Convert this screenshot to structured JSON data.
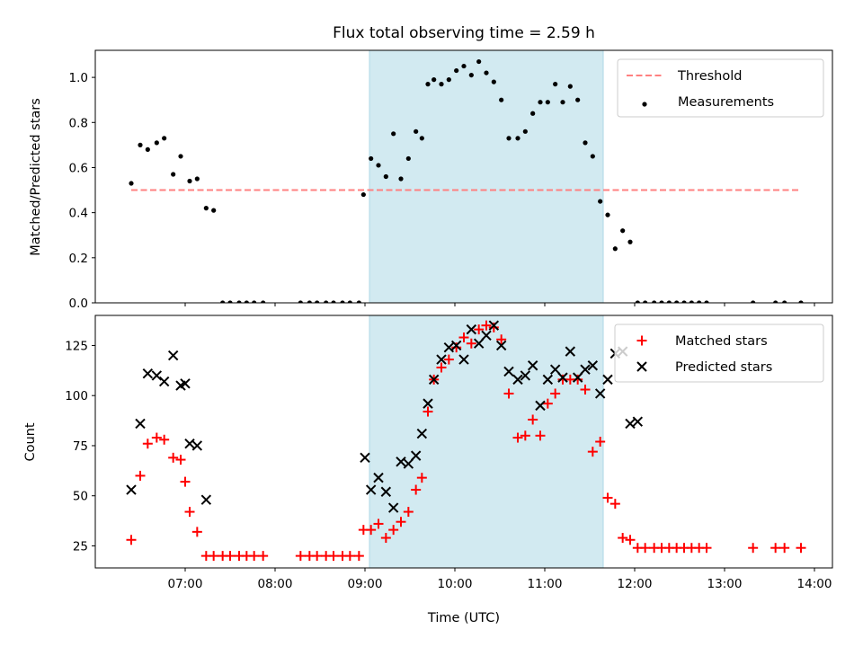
{
  "chart_data": [
    {
      "type": "scatter",
      "title": "Flux total observing time = 2.59 h",
      "xlabel": "",
      "ylabel": "Matched/Predicted stars",
      "xlim": [
        "06:00",
        "14:12"
      ],
      "ylim": [
        0,
        1.12
      ],
      "yticks": [
        0.0,
        0.2,
        0.4,
        0.6,
        0.8,
        1.0
      ],
      "ytick_labels": [
        "0.0",
        "0.2",
        "0.4",
        "0.6",
        "0.8",
        "1.0"
      ],
      "shaded_region": {
        "start": "09:03",
        "end": "11:39",
        "color": "#add8e6"
      },
      "legend_position": "top-right",
      "series": [
        {
          "name": "Threshold",
          "kind": "line",
          "style": "dashed",
          "color": "#ff8080",
          "x": [
            "06:24",
            "13:50"
          ],
          "y": [
            0.5,
            0.5
          ]
        },
        {
          "name": "Measurements",
          "kind": "scatter",
          "marker": "dot",
          "color": "#000000",
          "x": [
            "06:24",
            "06:30",
            "06:35",
            "06:41",
            "06:46",
            "06:52",
            "06:57",
            "07:03",
            "07:08",
            "07:14",
            "07:19",
            "07:25",
            "07:30",
            "07:36",
            "07:41",
            "07:46",
            "07:52",
            "08:17",
            "08:23",
            "08:28",
            "08:34",
            "08:39",
            "08:45",
            "08:50",
            "08:56",
            "08:59",
            "09:04",
            "09:09",
            "09:14",
            "09:19",
            "09:24",
            "09:29",
            "09:34",
            "09:38",
            "09:42",
            "09:46",
            "09:51",
            "09:56",
            "10:01",
            "10:06",
            "10:11",
            "10:16",
            "10:21",
            "10:26",
            "10:31",
            "10:36",
            "10:42",
            "10:47",
            "10:52",
            "10:57",
            "11:02",
            "11:07",
            "11:12",
            "11:17",
            "11:22",
            "11:27",
            "11:32",
            "11:37",
            "11:42",
            "11:47",
            "11:52",
            "11:57",
            "12:02",
            "12:07",
            "12:13",
            "12:18",
            "12:23",
            "12:28",
            "12:33",
            "12:38",
            "12:43",
            "12:48",
            "13:19",
            "13:34",
            "13:40",
            "13:51"
          ],
          "y": [
            0.53,
            0.7,
            0.68,
            0.71,
            0.73,
            0.57,
            0.65,
            0.54,
            0.55,
            0.42,
            0.41,
            0.0,
            0.0,
            0.0,
            0.0,
            0.0,
            0.0,
            0.0,
            0.0,
            0.0,
            0.0,
            0.0,
            0.0,
            0.0,
            0.0,
            0.48,
            0.64,
            0.61,
            0.56,
            0.75,
            0.55,
            0.64,
            0.76,
            0.73,
            0.97,
            0.99,
            0.97,
            0.99,
            1.03,
            1.05,
            1.01,
            1.07,
            1.02,
            0.98,
            0.9,
            0.73,
            0.73,
            0.76,
            0.84,
            0.89,
            0.89,
            0.97,
            0.89,
            0.96,
            0.9,
            0.71,
            0.65,
            0.45,
            0.39,
            0.24,
            0.32,
            0.27,
            0.0,
            0.0,
            0.0,
            0.0,
            0.0,
            0.0,
            0.0,
            0.0,
            0.0,
            0.0,
            0.0,
            0.0,
            0.0,
            0.0
          ]
        }
      ]
    },
    {
      "type": "scatter",
      "title": "",
      "xlabel": "Time (UTC)",
      "ylabel": "Count",
      "xlim": [
        "06:00",
        "14:12"
      ],
      "ylim": [
        14,
        140
      ],
      "xticks": [
        "07:00",
        "08:00",
        "09:00",
        "10:00",
        "11:00",
        "12:00",
        "13:00",
        "14:00"
      ],
      "xtick_labels": [
        "07:00",
        "08:00",
        "09:00",
        "10:00",
        "11:00",
        "12:00",
        "13:00",
        "14:00"
      ],
      "yticks": [
        25,
        50,
        75,
        100,
        125
      ],
      "ytick_labels": [
        "25",
        "50",
        "75",
        "100",
        "125"
      ],
      "shaded_region": {
        "start": "09:03",
        "end": "11:39",
        "color": "#add8e6"
      },
      "legend_position": "top-right",
      "series": [
        {
          "name": "Matched stars",
          "kind": "scatter",
          "marker": "plus",
          "color": "#ff0000",
          "x": [
            "06:24",
            "06:30",
            "06:35",
            "06:41",
            "06:46",
            "06:52",
            "06:57",
            "07:00",
            "07:03",
            "07:08",
            "07:14",
            "07:19",
            "07:25",
            "07:30",
            "07:36",
            "07:41",
            "07:46",
            "07:52",
            "08:17",
            "08:23",
            "08:28",
            "08:34",
            "08:39",
            "08:45",
            "08:50",
            "08:56",
            "08:59",
            "09:04",
            "09:09",
            "09:14",
            "09:19",
            "09:24",
            "09:29",
            "09:34",
            "09:38",
            "09:42",
            "09:46",
            "09:51",
            "09:56",
            "10:01",
            "10:06",
            "10:11",
            "10:16",
            "10:21",
            "10:26",
            "10:31",
            "10:36",
            "10:42",
            "10:47",
            "10:52",
            "10:57",
            "11:02",
            "11:07",
            "11:12",
            "11:17",
            "11:22",
            "11:27",
            "11:32",
            "11:37",
            "11:42",
            "11:47",
            "11:52",
            "11:57",
            "12:02",
            "12:07",
            "12:13",
            "12:18",
            "12:23",
            "12:28",
            "12:33",
            "12:38",
            "12:43",
            "12:48",
            "13:19",
            "13:34",
            "13:40",
            "13:51"
          ],
          "y": [
            28,
            60,
            76,
            79,
            78,
            69,
            68,
            57,
            42,
            32,
            20,
            20,
            20,
            20,
            20,
            20,
            20,
            20,
            20,
            20,
            20,
            20,
            20,
            20,
            20,
            20,
            33,
            33,
            36,
            29,
            33,
            37,
            42,
            53,
            59,
            92,
            108,
            114,
            118,
            124,
            129,
            126,
            133,
            135,
            134,
            128,
            101,
            79,
            80,
            88,
            80,
            96,
            101,
            108,
            108,
            108,
            103,
            72,
            77,
            49,
            46,
            29,
            28,
            24,
            24,
            24,
            24,
            24,
            24,
            24,
            24,
            24,
            24,
            24,
            24,
            24,
            24
          ]
        },
        {
          "name": "Predicted stars",
          "kind": "scatter",
          "marker": "x",
          "color": "#000000",
          "x": [
            "06:24",
            "06:30",
            "06:35",
            "06:41",
            "06:46",
            "06:52",
            "06:57",
            "07:00",
            "07:03",
            "07:08",
            "07:14",
            "09:00",
            "09:04",
            "09:09",
            "09:14",
            "09:19",
            "09:24",
            "09:29",
            "09:34",
            "09:38",
            "09:42",
            "09:46",
            "09:51",
            "09:56",
            "10:01",
            "10:06",
            "10:11",
            "10:16",
            "10:21",
            "10:26",
            "10:31",
            "10:36",
            "10:42",
            "10:47",
            "10:52",
            "10:57",
            "11:02",
            "11:07",
            "11:12",
            "11:17",
            "11:22",
            "11:27",
            "11:32",
            "11:37",
            "11:42",
            "11:47",
            "11:52",
            "11:57",
            "12:02"
          ],
          "y": [
            53,
            86,
            111,
            110,
            107,
            120,
            105,
            106,
            76,
            75,
            48,
            69,
            53,
            59,
            52,
            44,
            67,
            66,
            70,
            81,
            96,
            108,
            118,
            124,
            125,
            118,
            133,
            126,
            130,
            135,
            125,
            112,
            108,
            110,
            115,
            95,
            108,
            113,
            109,
            122,
            109,
            113,
            115,
            101,
            108,
            121,
            122,
            86,
            87
          ]
        }
      ]
    }
  ]
}
